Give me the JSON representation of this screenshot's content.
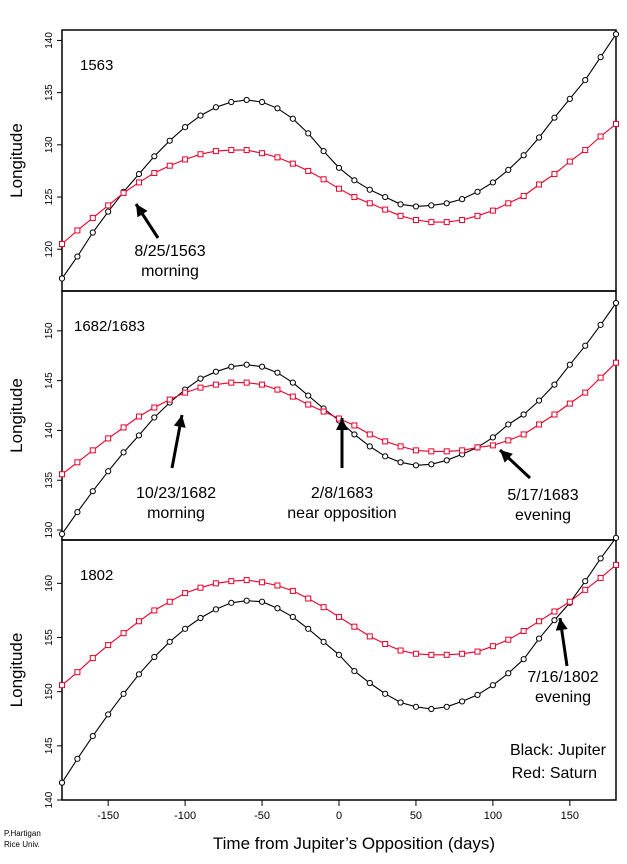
{
  "chart_data": [
    {
      "type": "line",
      "title": "1563",
      "xlabel": "Time from Jupiter’s Opposition (days)",
      "ylabel": "Longitude",
      "xlim": [
        -180,
        180
      ],
      "ylim": [
        116,
        141
      ],
      "yticks": [
        120,
        125,
        130,
        135,
        140
      ],
      "xticks": [
        -150,
        -100,
        -50,
        0,
        50,
        100,
        150
      ],
      "grid": false,
      "series": [
        {
          "name": "Jupiter",
          "color": "#000000",
          "marker": "circle",
          "x": [
            -180,
            -170,
            -160,
            -150,
            -140,
            -130,
            -120,
            -110,
            -100,
            -90,
            -80,
            -70,
            -60,
            -50,
            -40,
            -30,
            -20,
            -10,
            0,
            10,
            20,
            30,
            40,
            50,
            60,
            70,
            80,
            90,
            100,
            110,
            120,
            130,
            140,
            150,
            160,
            170,
            180
          ],
          "y": [
            117.2,
            119.3,
            121.6,
            123.6,
            125.5,
            127.2,
            128.9,
            130.4,
            131.7,
            132.8,
            133.6,
            134.1,
            134.3,
            134.1,
            133.5,
            132.5,
            131.1,
            129.4,
            127.8,
            126.6,
            125.7,
            125.0,
            124.3,
            124.1,
            124.2,
            124.4,
            124.8,
            125.5,
            126.4,
            127.6,
            129.0,
            130.7,
            132.6,
            134.4,
            136.2,
            138.4,
            140.6
          ]
        },
        {
          "name": "Saturn",
          "color": "#e8002a",
          "marker": "square",
          "x": [
            -180,
            -170,
            -160,
            -150,
            -140,
            -130,
            -120,
            -110,
            -100,
            -90,
            -80,
            -70,
            -60,
            -50,
            -40,
            -30,
            -20,
            -10,
            0,
            10,
            20,
            30,
            40,
            50,
            60,
            70,
            80,
            90,
            100,
            110,
            120,
            130,
            140,
            150,
            160,
            170,
            180
          ],
          "y": [
            120.5,
            121.8,
            123.0,
            124.2,
            125.4,
            126.4,
            127.3,
            128.0,
            128.6,
            129.1,
            129.4,
            129.5,
            129.5,
            129.2,
            128.8,
            128.2,
            127.5,
            126.7,
            125.8,
            125.0,
            124.4,
            123.8,
            123.2,
            122.8,
            122.6,
            122.6,
            122.8,
            123.2,
            123.7,
            124.4,
            125.1,
            126.2,
            127.2,
            128.4,
            129.5,
            130.8,
            132.0
          ]
        }
      ],
      "annotations": [
        {
          "text": [
            "8/25/1563",
            "morning"
          ],
          "x": -133,
          "y": 121.6
        }
      ]
    },
    {
      "type": "line",
      "title": "1682/1683",
      "xlabel": "Time from Jupiter’s Opposition (days)",
      "ylabel": "Longitude",
      "xlim": [
        -180,
        180
      ],
      "ylim": [
        129,
        154
      ],
      "yticks": [
        130,
        135,
        140,
        145,
        150
      ],
      "xticks": [
        -150,
        -100,
        -50,
        0,
        50,
        100,
        150
      ],
      "grid": false,
      "series": [
        {
          "name": "Jupiter",
          "color": "#000000",
          "marker": "circle",
          "x": [
            -180,
            -170,
            -160,
            -150,
            -140,
            -130,
            -120,
            -110,
            -100,
            -90,
            -80,
            -70,
            -60,
            -50,
            -40,
            -30,
            -20,
            -10,
            0,
            10,
            20,
            30,
            40,
            50,
            60,
            70,
            80,
            90,
            100,
            110,
            120,
            130,
            140,
            150,
            160,
            170,
            180
          ],
          "y": [
            129.6,
            131.8,
            133.9,
            135.9,
            137.8,
            139.5,
            141.3,
            142.8,
            144.1,
            145.2,
            145.9,
            146.4,
            146.6,
            146.4,
            145.8,
            144.8,
            143.5,
            142.2,
            141.0,
            139.6,
            138.4,
            137.4,
            136.8,
            136.5,
            136.6,
            137.0,
            137.6,
            138.3,
            139.3,
            140.6,
            141.6,
            143.0,
            144.6,
            146.6,
            148.5,
            150.6,
            152.8
          ]
        },
        {
          "name": "Saturn",
          "color": "#e8002a",
          "marker": "square",
          "x": [
            -180,
            -170,
            -160,
            -150,
            -140,
            -130,
            -120,
            -110,
            -100,
            -90,
            -80,
            -70,
            -60,
            -50,
            -40,
            -30,
            -20,
            -10,
            0,
            10,
            20,
            30,
            40,
            50,
            60,
            70,
            80,
            90,
            100,
            110,
            120,
            130,
            140,
            150,
            160,
            170,
            180
          ],
          "y": [
            135.6,
            136.8,
            138.0,
            139.2,
            140.3,
            141.4,
            142.3,
            143.1,
            143.8,
            144.3,
            144.6,
            144.8,
            144.8,
            144.6,
            144.1,
            143.4,
            142.6,
            141.9,
            141.2,
            140.5,
            139.6,
            138.9,
            138.4,
            138.0,
            137.9,
            137.9,
            138.0,
            138.3,
            138.5,
            139.0,
            139.6,
            140.6,
            141.6,
            142.7,
            143.8,
            145.3,
            146.8
          ]
        }
      ],
      "annotations": [
        {
          "text": [
            "10/23/1682",
            "morning"
          ],
          "x": -110,
          "y": 133.5
        },
        {
          "text": [
            "2/8/1683",
            "near opposition"
          ],
          "x": 5,
          "y": 134.2
        },
        {
          "text": [
            "5/17/1683",
            "evening"
          ],
          "x": 140,
          "y": 133.5
        }
      ]
    },
    {
      "type": "line",
      "title": "1802",
      "xlabel": "Time from Jupiter’s Opposition (days)",
      "ylabel": "Longitude",
      "xlim": [
        -180,
        180
      ],
      "ylim": [
        140,
        164
      ],
      "yticks": [
        140,
        145,
        150,
        155,
        160
      ],
      "xticks": [
        -150,
        -100,
        -50,
        0,
        50,
        100,
        150
      ],
      "grid": false,
      "series": [
        {
          "name": "Jupiter",
          "color": "#000000",
          "marker": "circle",
          "x": [
            -180,
            -170,
            -160,
            -150,
            -140,
            -130,
            -120,
            -110,
            -100,
            -90,
            -80,
            -70,
            -60,
            -50,
            -40,
            -30,
            -20,
            -10,
            0,
            10,
            20,
            30,
            40,
            50,
            60,
            70,
            80,
            90,
            100,
            110,
            120,
            130,
            140,
            150,
            160,
            170,
            180
          ],
          "y": [
            141.6,
            143.8,
            145.9,
            147.9,
            149.8,
            151.6,
            153.2,
            154.6,
            155.8,
            156.8,
            157.6,
            158.2,
            158.4,
            158.3,
            157.7,
            156.9,
            155.8,
            154.6,
            153.4,
            151.9,
            150.8,
            149.8,
            149.0,
            148.6,
            148.4,
            148.6,
            149.1,
            149.7,
            150.6,
            151.7,
            153.0,
            154.9,
            156.6,
            158.2,
            160.2,
            162.3,
            164.2
          ]
        },
        {
          "name": "Saturn",
          "color": "#e8002a",
          "marker": "square",
          "x": [
            -180,
            -170,
            -160,
            -150,
            -140,
            -130,
            -120,
            -110,
            -100,
            -90,
            -80,
            -70,
            -60,
            -50,
            -40,
            -30,
            -20,
            -10,
            0,
            10,
            20,
            30,
            40,
            50,
            60,
            70,
            80,
            90,
            100,
            110,
            120,
            130,
            140,
            150,
            160,
            170,
            180
          ],
          "y": [
            150.6,
            151.8,
            153.1,
            154.3,
            155.4,
            156.5,
            157.5,
            158.3,
            159.1,
            159.6,
            160.0,
            160.2,
            160.3,
            160.1,
            159.8,
            159.3,
            158.6,
            157.8,
            156.9,
            156.0,
            155.1,
            154.4,
            153.8,
            153.5,
            153.4,
            153.4,
            153.5,
            153.7,
            154.2,
            154.8,
            155.6,
            156.5,
            157.4,
            158.3,
            159.4,
            160.5,
            161.7
          ]
        }
      ],
      "annotations": [
        {
          "text": [
            "7/16/1802",
            "evening"
          ],
          "x": 150,
          "y": 151.8
        }
      ],
      "legend": {
        "position": "bottom-right",
        "lines": [
          "Black: Jupiter",
          "Red: Saturn"
        ]
      }
    }
  ],
  "xlabel": "Time from Jupiter’s Opposition (days)",
  "credit": [
    "P.Hartigan",
    "Rice Univ."
  ]
}
